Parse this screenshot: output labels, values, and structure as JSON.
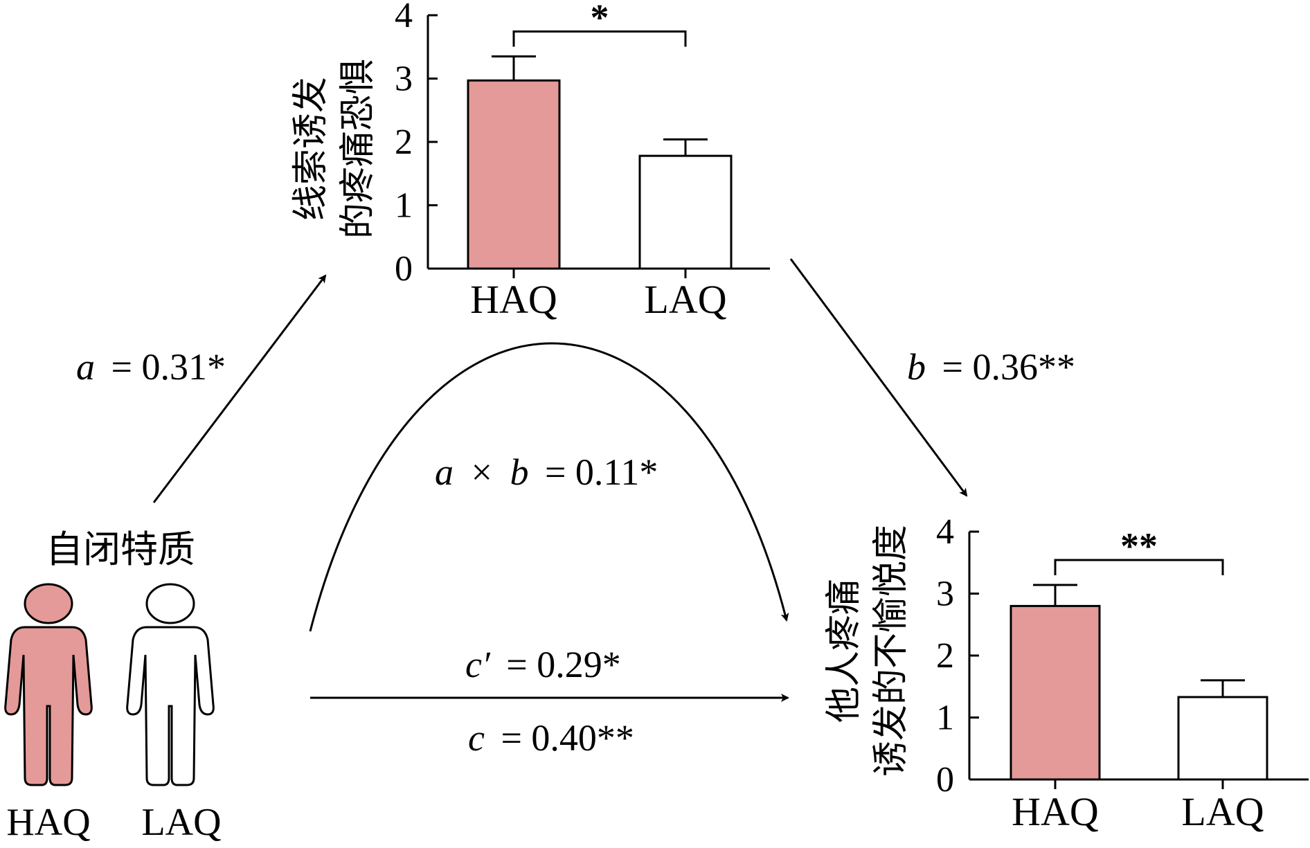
{
  "trait": {
    "label": "自闭特质",
    "groups": [
      "HAQ",
      "LAQ"
    ],
    "colors": {
      "HAQ": "#e49a98",
      "LAQ": "#ffffff"
    }
  },
  "paths": {
    "a": {
      "var": "a",
      "value": "= 0.31*"
    },
    "b": {
      "var": "b",
      "value": "= 0.36**"
    },
    "ab": {
      "var_a": "a",
      "times": "×",
      "var_b": "b",
      "value": "= 0.11*"
    },
    "c_prime": {
      "var": "c′",
      "value": "= 0.29*"
    },
    "c": {
      "var": "c",
      "value": "= 0.40**"
    }
  },
  "chart_data": [
    {
      "type": "bar",
      "ylabel_line1": "线索诱发",
      "ylabel_line2": "的疼痛恐惧",
      "categories": [
        "HAQ",
        "LAQ"
      ],
      "values": [
        2.97,
        1.78
      ],
      "errors": [
        0.38,
        0.26
      ],
      "colors": [
        "#e49a98",
        "#ffffff"
      ],
      "ylim": [
        0,
        4
      ],
      "yticks": [
        "0",
        "1",
        "2",
        "3",
        "4"
      ],
      "significance": "*"
    },
    {
      "type": "bar",
      "ylabel_line1": "他人疼痛",
      "ylabel_line2": "诱发的不愉悦度",
      "categories": [
        "HAQ",
        "LAQ"
      ],
      "values": [
        2.8,
        1.33
      ],
      "errors": [
        0.34,
        0.27
      ],
      "colors": [
        "#e49a98",
        "#ffffff"
      ],
      "ylim": [
        0,
        4
      ],
      "yticks": [
        "0",
        "1",
        "2",
        "3",
        "4"
      ],
      "significance": "**"
    }
  ]
}
